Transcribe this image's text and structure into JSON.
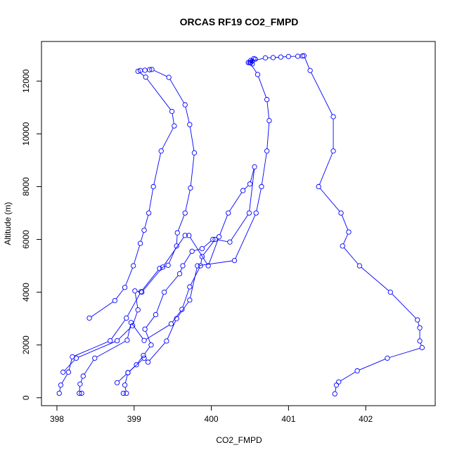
{
  "chart_data": {
    "type": "line",
    "title": "ORCAS RF19 CO2_FMPD",
    "xlabel": "CO2_FMPD",
    "ylabel": "Altitude (m)",
    "xlim": [
      397.8,
      402.9
    ],
    "ylim": [
      -300,
      13500
    ],
    "x_ticks": [
      398,
      399,
      400,
      401,
      402
    ],
    "y_ticks": [
      0,
      2000,
      4000,
      6000,
      8000,
      10000,
      12000
    ],
    "grid": false,
    "legend": "none",
    "marker": "open-circle",
    "color": "#0000ff",
    "series": [
      {
        "points": [
          [
            398.42,
            3020
          ],
          [
            398.75,
            3680
          ],
          [
            398.88,
            4180
          ],
          [
            398.99,
            5000
          ],
          [
            399.08,
            5850
          ],
          [
            399.13,
            6350
          ],
          [
            399.19,
            7000
          ],
          [
            399.25,
            8000
          ],
          [
            399.35,
            9350
          ],
          [
            399.52,
            10300
          ],
          [
            399.49,
            10850
          ],
          [
            399.15,
            12150
          ],
          [
            399.05,
            12370
          ],
          [
            399.08,
            12400
          ],
          [
            399.14,
            12410
          ],
          [
            399.2,
            12430
          ],
          [
            399.23,
            12440
          ],
          [
            399.45,
            12140
          ],
          [
            399.66,
            11100
          ],
          [
            399.72,
            10350
          ],
          [
            399.78,
            9280
          ],
          [
            399.73,
            7950
          ],
          [
            399.66,
            7000
          ],
          [
            399.56,
            6250
          ],
          [
            399.55,
            5750
          ],
          [
            399.44,
            5020
          ],
          [
            399.33,
            4900
          ],
          [
            399.09,
            4020
          ],
          [
            398.9,
            3020
          ],
          [
            398.69,
            2160
          ],
          [
            398.2,
            1550
          ],
          [
            398.15,
            970
          ],
          [
            398.05,
            480
          ],
          [
            398.03,
            170
          ]
        ]
      },
      {
        "points": [
          [
            398.08,
            970
          ],
          [
            398.25,
            1500
          ],
          [
            398.78,
            2160
          ],
          [
            398.98,
            2730
          ],
          [
            399.05,
            3330
          ],
          [
            399.01,
            4050
          ],
          [
            399.1,
            4000
          ],
          [
            399.37,
            4950
          ],
          [
            399.66,
            6150
          ],
          [
            399.71,
            6150
          ],
          [
            399.96,
            5000
          ],
          [
            400.1,
            6100
          ],
          [
            400.22,
            7000
          ],
          [
            400.41,
            7850
          ],
          [
            400.5,
            8100
          ],
          [
            400.56,
            8750
          ],
          [
            400.49,
            7000
          ],
          [
            400.24,
            5900
          ],
          [
            400.05,
            6000
          ],
          [
            399.88,
            5350
          ],
          [
            399.86,
            5000
          ],
          [
            399.72,
            4200
          ],
          [
            399.62,
            3350
          ],
          [
            399.48,
            2800
          ],
          [
            399.13,
            2170
          ],
          [
            398.96,
            2850
          ],
          [
            398.91,
            2180
          ],
          [
            398.49,
            1500
          ],
          [
            398.34,
            820
          ],
          [
            398.3,
            520
          ],
          [
            398.29,
            170
          ],
          [
            398.32,
            170
          ]
        ]
      },
      {
        "points": [
          [
            398.86,
            170
          ],
          [
            398.9,
            170
          ],
          [
            398.88,
            480
          ],
          [
            398.92,
            950
          ],
          [
            399.13,
            1500
          ],
          [
            399.18,
            1350
          ],
          [
            399.42,
            2150
          ],
          [
            399.55,
            3000
          ],
          [
            399.72,
            3700
          ],
          [
            399.82,
            5000
          ],
          [
            400.3,
            5200
          ],
          [
            400.58,
            7000
          ],
          [
            400.65,
            8000
          ],
          [
            400.72,
            9350
          ],
          [
            400.75,
            10500
          ],
          [
            400.72,
            11300
          ],
          [
            400.6,
            12250
          ],
          [
            400.5,
            12700
          ],
          [
            400.53,
            12650
          ],
          [
            400.51,
            12780
          ],
          [
            400.57,
            12830
          ],
          [
            400.48,
            12700
          ],
          [
            400.55,
            12850
          ],
          [
            400.51,
            12700
          ],
          [
            400.48,
            12700
          ],
          [
            400.53,
            12760
          ],
          [
            400.7,
            12880
          ],
          [
            400.8,
            12890
          ],
          [
            400.9,
            12910
          ],
          [
            401.0,
            12930
          ],
          [
            401.12,
            12940
          ],
          [
            401.18,
            12950
          ],
          [
            401.2,
            12960
          ],
          [
            401.28,
            12400
          ],
          [
            401.58,
            10650
          ],
          [
            401.58,
            9350
          ],
          [
            401.39,
            8000
          ],
          [
            401.68,
            7000
          ],
          [
            401.78,
            6280
          ],
          [
            401.7,
            5750
          ],
          [
            401.92,
            5000
          ],
          [
            402.32,
            4000
          ],
          [
            402.67,
            2950
          ],
          [
            402.7,
            2650
          ],
          [
            402.7,
            2150
          ],
          [
            402.73,
            1900
          ],
          [
            402.28,
            1500
          ],
          [
            401.89,
            1020
          ],
          [
            401.65,
            600
          ],
          [
            401.62,
            480
          ],
          [
            401.6,
            150
          ]
        ]
      },
      {
        "points": [
          [
            398.78,
            570
          ],
          [
            398.92,
            950
          ],
          [
            399.03,
            1250
          ],
          [
            399.12,
            1600
          ],
          [
            399.22,
            2000
          ],
          [
            399.14,
            2600
          ],
          [
            399.28,
            3150
          ],
          [
            399.39,
            4000
          ],
          [
            399.59,
            4700
          ],
          [
            399.63,
            5000
          ],
          [
            399.75,
            5550
          ],
          [
            399.88,
            5650
          ],
          [
            400.02,
            6000
          ]
        ]
      }
    ]
  }
}
